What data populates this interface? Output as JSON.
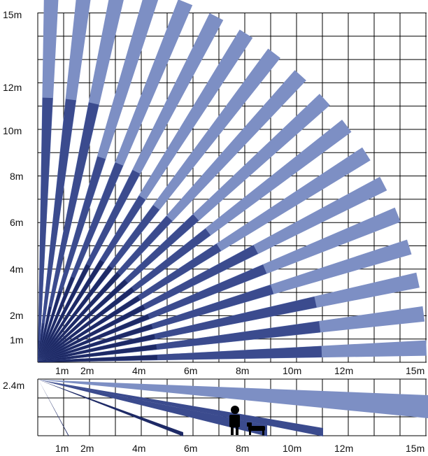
{
  "top_view": {
    "y_labels": [
      "15m",
      "12m",
      "10m",
      "8m",
      "6m",
      "4m",
      "2m",
      "1m"
    ],
    "x_labels": [
      "1m",
      "2m",
      "4m",
      "6m",
      "8m",
      "10m",
      "12m",
      "15m"
    ]
  },
  "side_view": {
    "height_label": "2.4m",
    "x_labels": [
      "1m",
      "2m",
      "4m",
      "6m",
      "8m",
      "10m",
      "12m",
      "15m"
    ],
    "figures": [
      "person-silhouette",
      "dog-silhouette"
    ]
  },
  "colors": {
    "zone_far": "#7d8fc4",
    "zone_mid": "#3b4b8e",
    "zone_near": "#1e2a66",
    "grid": "#000000"
  }
}
